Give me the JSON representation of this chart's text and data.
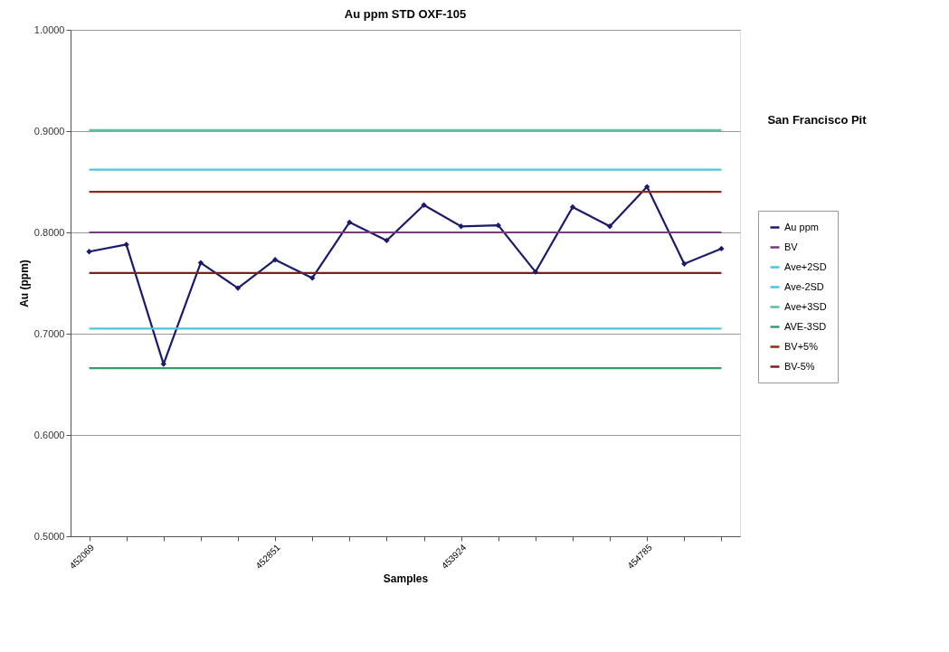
{
  "chart_data": {
    "type": "line",
    "title": "Au ppm STD OXF-105",
    "xlabel": "Samples",
    "ylabel": "Au (ppm)",
    "categories": [
      "452069",
      null,
      null,
      null,
      null,
      "452851",
      null,
      null,
      null,
      null,
      "453924",
      null,
      null,
      null,
      null,
      "454785",
      null,
      null
    ],
    "series": [
      {
        "name": "Au ppm",
        "color": "#1b1b6b",
        "marker": "diamond",
        "values": [
          0.781,
          0.788,
          0.67,
          0.77,
          0.745,
          0.773,
          0.755,
          0.81,
          0.792,
          0.827,
          0.806,
          0.807,
          0.761,
          0.825,
          0.806,
          0.845,
          0.769,
          0.784
        ]
      },
      {
        "name": "BV",
        "color": "#7a3b7d",
        "values": [
          0.8,
          0.8,
          0.8,
          0.8,
          0.8,
          0.8,
          0.8,
          0.8,
          0.8,
          0.8,
          0.8,
          0.8,
          0.8,
          0.8,
          0.8,
          0.8,
          0.8,
          0.8
        ]
      },
      {
        "name": "Ave+2SD",
        "color": "#4cc6dc",
        "values": [
          0.862,
          0.862,
          0.862,
          0.862,
          0.862,
          0.862,
          0.862,
          0.862,
          0.862,
          0.862,
          0.862,
          0.862,
          0.862,
          0.862,
          0.862,
          0.862,
          0.862,
          0.862
        ]
      },
      {
        "name": "Ave-2SD",
        "color": "#4cc6dc",
        "values": [
          0.705,
          0.705,
          0.705,
          0.705,
          0.705,
          0.705,
          0.705,
          0.705,
          0.705,
          0.705,
          0.705,
          0.705,
          0.705,
          0.705,
          0.705,
          0.705,
          0.705,
          0.705
        ]
      },
      {
        "name": "Ave+3SD",
        "color": "#5bbfa0",
        "values": [
          0.901,
          0.901,
          0.901,
          0.901,
          0.901,
          0.901,
          0.901,
          0.901,
          0.901,
          0.901,
          0.901,
          0.901,
          0.901,
          0.901,
          0.901,
          0.901,
          0.901,
          0.901
        ]
      },
      {
        "name": "AVE-3SD",
        "color": "#3a9a6c",
        "values": [
          0.666,
          0.666,
          0.666,
          0.666,
          0.666,
          0.666,
          0.666,
          0.666,
          0.666,
          0.666,
          0.666,
          0.666,
          0.666,
          0.666,
          0.666,
          0.666,
          0.666,
          0.666
        ]
      },
      {
        "name": "BV+5%",
        "color": "#8b2e1c",
        "values": [
          0.84,
          0.84,
          0.84,
          0.84,
          0.84,
          0.84,
          0.84,
          0.84,
          0.84,
          0.84,
          0.84,
          0.84,
          0.84,
          0.84,
          0.84,
          0.84,
          0.84,
          0.84
        ]
      },
      {
        "name": "BV-5%",
        "color": "#7a2222",
        "values": [
          0.76,
          0.76,
          0.76,
          0.76,
          0.76,
          0.76,
          0.76,
          0.76,
          0.76,
          0.76,
          0.76,
          0.76,
          0.76,
          0.76,
          0.76,
          0.76,
          0.76,
          0.76
        ]
      }
    ],
    "ylim": [
      0.5,
      1.0
    ],
    "yticks": [
      {
        "value": 0.5,
        "label": "0.5000"
      },
      {
        "value": 0.6,
        "label": "0.6000"
      },
      {
        "value": 0.7,
        "label": "0.7000"
      },
      {
        "value": 0.8,
        "label": "0.8000"
      },
      {
        "value": 0.9,
        "label": "0.9000"
      },
      {
        "value": 1.0,
        "label": "1.0000"
      }
    ],
    "grid": "y",
    "legend": "right",
    "line_style": "solid",
    "annotations": [
      "San Francisco Pit"
    ]
  }
}
